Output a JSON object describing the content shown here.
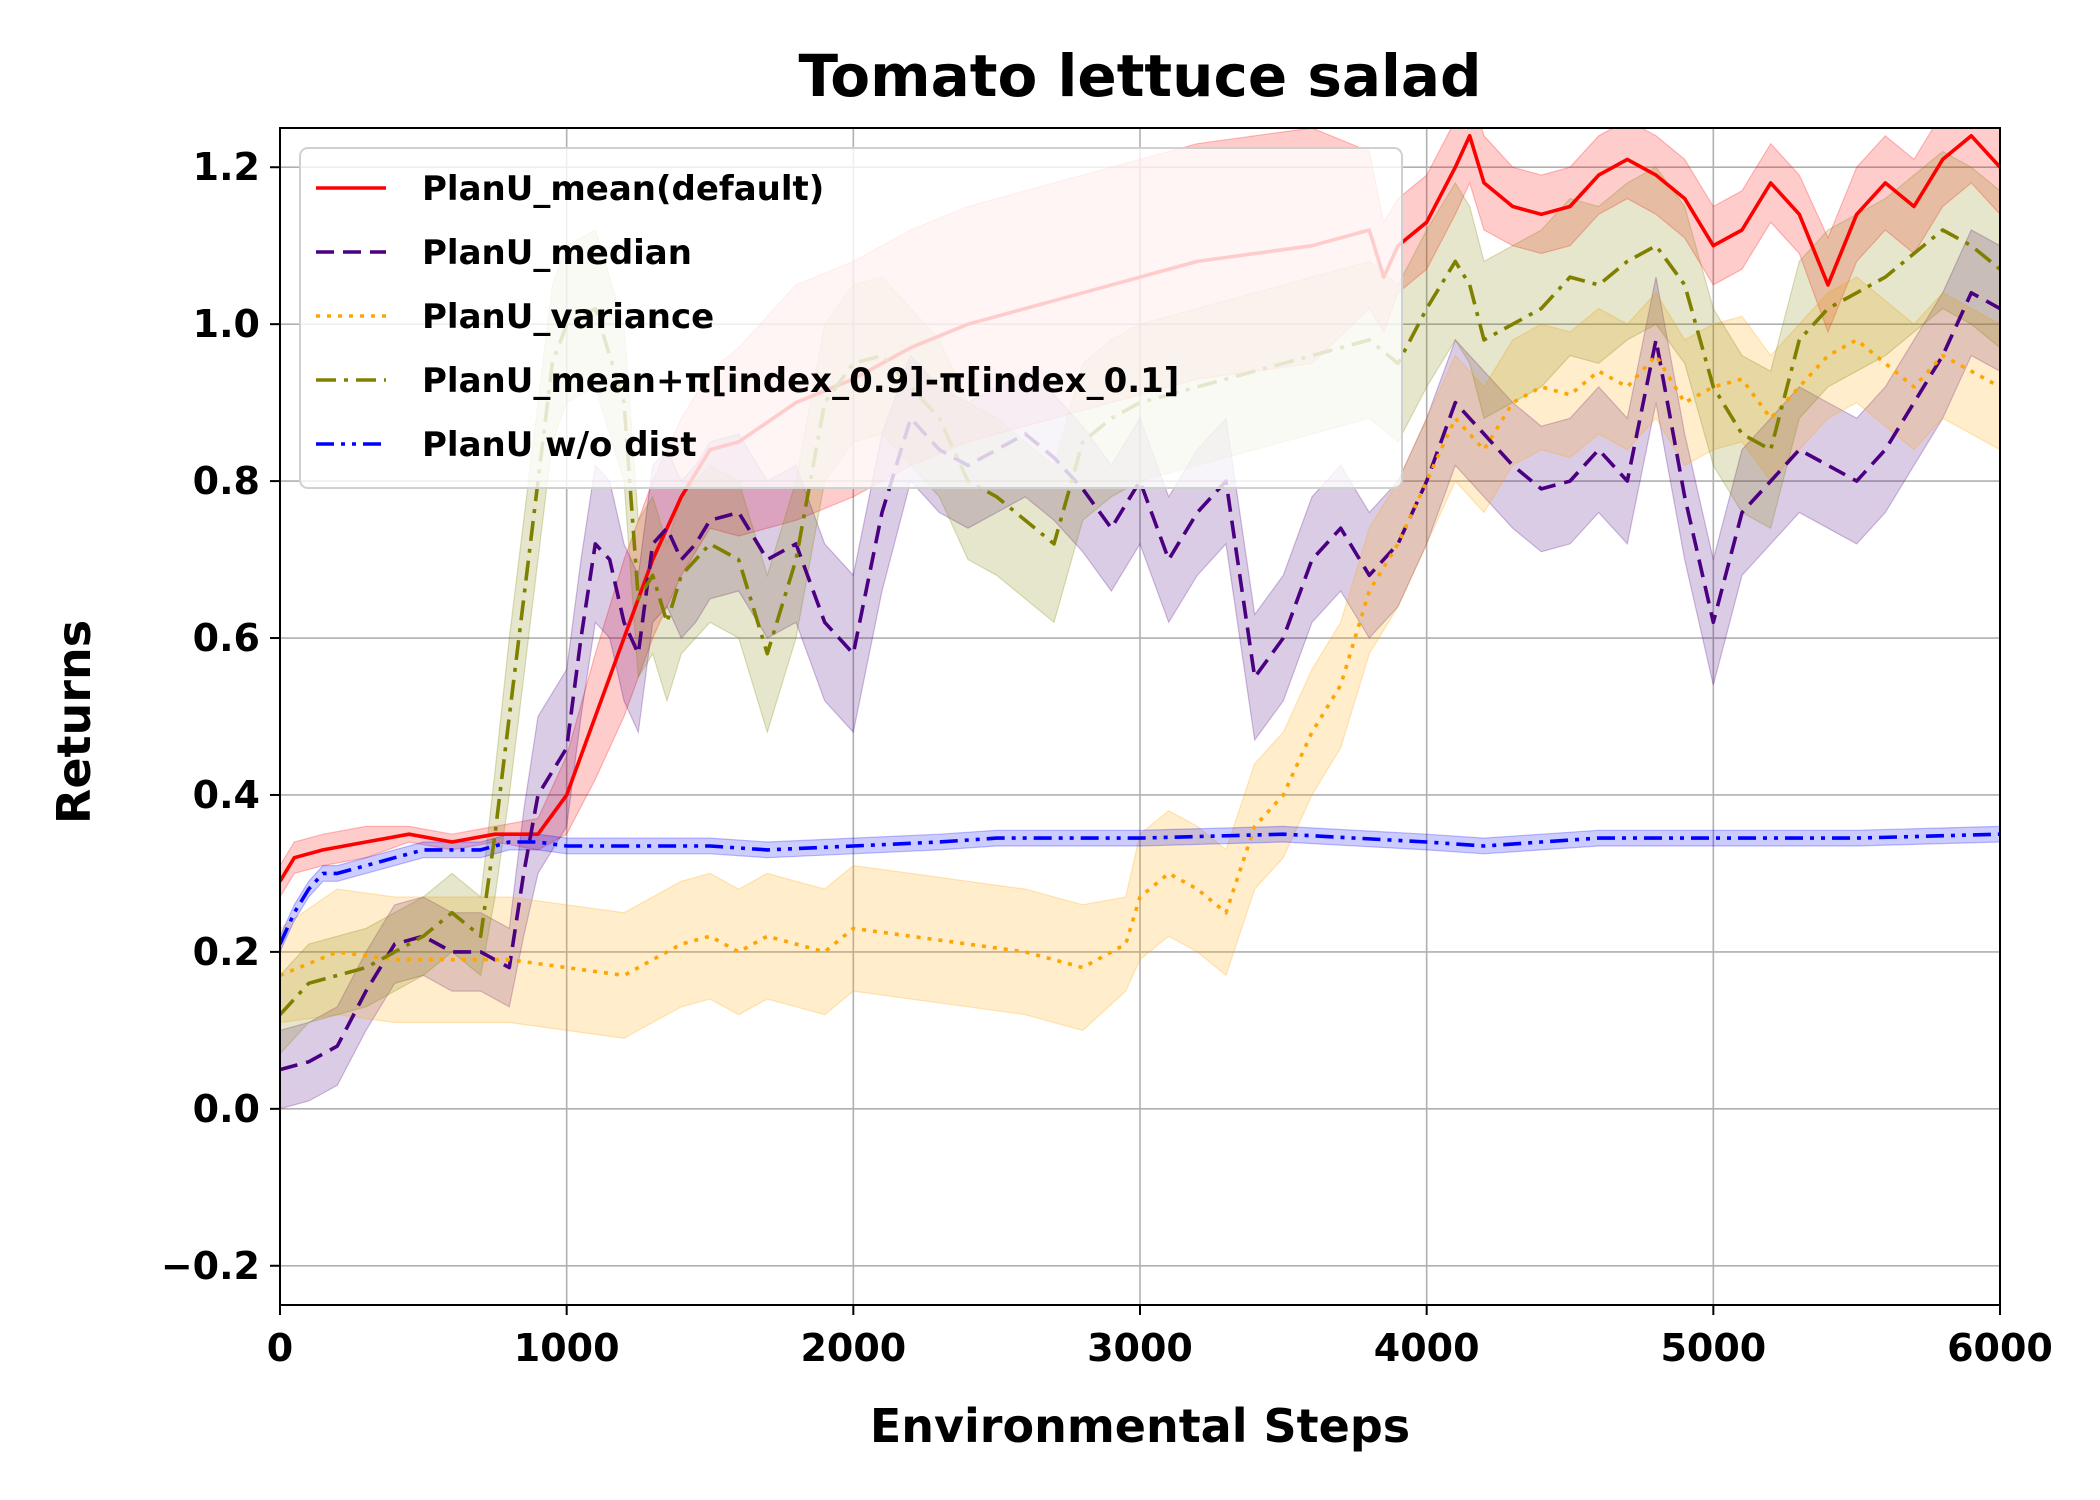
{
  "chart_data": {
    "type": "line",
    "title": "Tomato lettuce salad",
    "xlabel": "Environmental Steps",
    "ylabel": "Returns",
    "xlim": [
      0,
      6000
    ],
    "ylim": [
      -0.25,
      1.25
    ],
    "xticks": [
      0,
      1000,
      2000,
      3000,
      4000,
      5000,
      6000
    ],
    "xtick_labels": [
      "0",
      "1000",
      "2000",
      "3000",
      "4000",
      "5000",
      "6000"
    ],
    "yticks": [
      -0.2,
      0.0,
      0.2,
      0.4,
      0.6,
      0.8,
      1.0,
      1.2
    ],
    "ytick_labels": [
      "−0.2",
      "0.0",
      "0.2",
      "0.4",
      "0.6",
      "0.8",
      "1.0",
      "1.2"
    ],
    "grid": true,
    "legend_position": "top-left",
    "series": [
      {
        "name": "PlanU_mean(default)",
        "color": "#ff0000",
        "dash": "solid",
        "x": [
          0,
          50,
          150,
          300,
          450,
          600,
          750,
          900,
          1000,
          1100,
          1200,
          1300,
          1400,
          1500,
          1600,
          1800,
          2000,
          2200,
          2400,
          2600,
          2800,
          3000,
          3200,
          3400,
          3600,
          3800,
          3850,
          3900,
          4000,
          4100,
          4150,
          4200,
          4300,
          4400,
          4500,
          4600,
          4700,
          4800,
          4900,
          5000,
          5100,
          5200,
          5300,
          5400,
          5500,
          5600,
          5700,
          5800,
          5900,
          6000
        ],
        "y": [
          0.29,
          0.32,
          0.33,
          0.34,
          0.35,
          0.34,
          0.35,
          0.35,
          0.4,
          0.5,
          0.6,
          0.7,
          0.78,
          0.84,
          0.85,
          0.9,
          0.93,
          0.97,
          1.0,
          1.02,
          1.04,
          1.06,
          1.08,
          1.09,
          1.1,
          1.12,
          1.06,
          1.1,
          1.13,
          1.2,
          1.24,
          1.18,
          1.15,
          1.14,
          1.15,
          1.19,
          1.21,
          1.19,
          1.16,
          1.1,
          1.12,
          1.18,
          1.14,
          1.05,
          1.14,
          1.18,
          1.15,
          1.21,
          1.24,
          1.2
        ],
        "band": [
          0.02,
          0.02,
          0.02,
          0.02,
          0.01,
          0.01,
          0.01,
          0.02,
          0.05,
          0.08,
          0.1,
          0.1,
          0.1,
          0.1,
          0.12,
          0.15,
          0.15,
          0.15,
          0.15,
          0.15,
          0.15,
          0.15,
          0.15,
          0.15,
          0.15,
          0.1,
          0.07,
          0.06,
          0.06,
          0.06,
          0.06,
          0.06,
          0.05,
          0.05,
          0.05,
          0.05,
          0.05,
          0.05,
          0.05,
          0.05,
          0.05,
          0.05,
          0.05,
          0.06,
          0.06,
          0.06,
          0.06,
          0.06,
          0.06,
          0.06
        ]
      },
      {
        "name": "PlanU_median",
        "color": "#4b0082",
        "dash": "dashed",
        "x": [
          0,
          100,
          200,
          300,
          400,
          500,
          600,
          700,
          800,
          850,
          900,
          1000,
          1050,
          1100,
          1150,
          1200,
          1250,
          1300,
          1350,
          1400,
          1450,
          1500,
          1600,
          1700,
          1800,
          1900,
          2000,
          2100,
          2200,
          2300,
          2400,
          2500,
          2600,
          2700,
          2800,
          2900,
          3000,
          3100,
          3200,
          3300,
          3400,
          3500,
          3600,
          3700,
          3800,
          3900,
          4000,
          4100,
          4200,
          4300,
          4400,
          4500,
          4600,
          4700,
          4800,
          4900,
          5000,
          5100,
          5200,
          5300,
          5400,
          5500,
          5600,
          5700,
          5800,
          5900,
          6000
        ],
        "y": [
          0.05,
          0.06,
          0.08,
          0.15,
          0.21,
          0.22,
          0.2,
          0.2,
          0.18,
          0.3,
          0.4,
          0.46,
          0.6,
          0.72,
          0.7,
          0.62,
          0.58,
          0.72,
          0.74,
          0.7,
          0.72,
          0.75,
          0.76,
          0.7,
          0.72,
          0.62,
          0.58,
          0.76,
          0.88,
          0.84,
          0.82,
          0.84,
          0.86,
          0.83,
          0.79,
          0.74,
          0.8,
          0.7,
          0.76,
          0.8,
          0.55,
          0.6,
          0.7,
          0.74,
          0.68,
          0.72,
          0.8,
          0.9,
          0.86,
          0.82,
          0.79,
          0.8,
          0.84,
          0.8,
          0.98,
          0.78,
          0.62,
          0.76,
          0.8,
          0.84,
          0.82,
          0.8,
          0.84,
          0.9,
          0.96,
          1.04,
          1.02
        ],
        "band": [
          0.05,
          0.05,
          0.05,
          0.05,
          0.05,
          0.05,
          0.05,
          0.05,
          0.05,
          0.08,
          0.1,
          0.1,
          0.1,
          0.1,
          0.1,
          0.1,
          0.1,
          0.1,
          0.1,
          0.1,
          0.1,
          0.1,
          0.1,
          0.1,
          0.1,
          0.1,
          0.1,
          0.1,
          0.08,
          0.08,
          0.08,
          0.08,
          0.08,
          0.08,
          0.08,
          0.08,
          0.08,
          0.08,
          0.08,
          0.08,
          0.08,
          0.08,
          0.08,
          0.08,
          0.08,
          0.08,
          0.08,
          0.08,
          0.08,
          0.08,
          0.08,
          0.08,
          0.08,
          0.08,
          0.08,
          0.08,
          0.08,
          0.08,
          0.08,
          0.08,
          0.08,
          0.08,
          0.08,
          0.08,
          0.08,
          0.08,
          0.08
        ]
      },
      {
        "name": "PlanU_variance",
        "color": "#ffa500",
        "dash": "dotted",
        "x": [
          0,
          200,
          400,
          600,
          800,
          1000,
          1200,
          1400,
          1500,
          1600,
          1700,
          1800,
          1900,
          2000,
          2200,
          2400,
          2600,
          2800,
          2950,
          3000,
          3100,
          3200,
          3300,
          3400,
          3500,
          3600,
          3700,
          3800,
          3900,
          4000,
          4100,
          4200,
          4300,
          4400,
          4500,
          4600,
          4700,
          4800,
          4900,
          5000,
          5100,
          5200,
          5300,
          5400,
          5500,
          5600,
          5700,
          5800,
          5900,
          6000
        ],
        "y": [
          0.17,
          0.2,
          0.19,
          0.19,
          0.19,
          0.18,
          0.17,
          0.21,
          0.22,
          0.2,
          0.22,
          0.21,
          0.2,
          0.23,
          0.22,
          0.21,
          0.2,
          0.18,
          0.21,
          0.27,
          0.3,
          0.28,
          0.25,
          0.36,
          0.4,
          0.48,
          0.54,
          0.66,
          0.72,
          0.8,
          0.88,
          0.84,
          0.9,
          0.92,
          0.91,
          0.94,
          0.92,
          0.96,
          0.9,
          0.92,
          0.93,
          0.88,
          0.92,
          0.96,
          0.98,
          0.95,
          0.92,
          0.96,
          0.94,
          0.92
        ],
        "band": [
          0.06,
          0.08,
          0.08,
          0.08,
          0.08,
          0.08,
          0.08,
          0.08,
          0.08,
          0.08,
          0.08,
          0.08,
          0.08,
          0.08,
          0.08,
          0.08,
          0.08,
          0.08,
          0.06,
          0.08,
          0.08,
          0.08,
          0.08,
          0.08,
          0.08,
          0.08,
          0.08,
          0.08,
          0.08,
          0.08,
          0.08,
          0.08,
          0.08,
          0.08,
          0.08,
          0.08,
          0.08,
          0.08,
          0.08,
          0.08,
          0.08,
          0.08,
          0.08,
          0.08,
          0.08,
          0.08,
          0.08,
          0.08,
          0.08,
          0.08
        ]
      },
      {
        "name": "PlanU_mean+π[index_0.9]-π[index_0.1]",
        "color": "#808000",
        "dash": "dashdot",
        "x": [
          0,
          100,
          200,
          300,
          400,
          500,
          600,
          700,
          750,
          800,
          850,
          900,
          950,
          1000,
          1100,
          1200,
          1250,
          1300,
          1350,
          1400,
          1500,
          1600,
          1700,
          1800,
          1900,
          2000,
          2100,
          2200,
          2300,
          2400,
          2500,
          2600,
          2700,
          2800,
          2900,
          3000,
          3200,
          3400,
          3600,
          3800,
          3900,
          4000,
          4100,
          4150,
          4200,
          4300,
          4400,
          4500,
          4600,
          4700,
          4800,
          4900,
          5000,
          5100,
          5200,
          5300,
          5400,
          5500,
          5600,
          5700,
          5800,
          5900,
          6000
        ],
        "y": [
          0.12,
          0.16,
          0.17,
          0.18,
          0.2,
          0.22,
          0.25,
          0.22,
          0.35,
          0.5,
          0.65,
          0.8,
          0.95,
          1.0,
          1.02,
          0.9,
          0.65,
          0.68,
          0.62,
          0.68,
          0.72,
          0.7,
          0.58,
          0.7,
          0.9,
          0.95,
          0.96,
          0.92,
          0.88,
          0.8,
          0.78,
          0.75,
          0.72,
          0.85,
          0.88,
          0.9,
          0.92,
          0.94,
          0.96,
          0.98,
          0.95,
          1.02,
          1.08,
          1.05,
          0.98,
          1.0,
          1.02,
          1.06,
          1.05,
          1.08,
          1.1,
          1.05,
          0.92,
          0.86,
          0.84,
          0.98,
          1.02,
          1.04,
          1.06,
          1.09,
          1.12,
          1.1,
          1.07
        ],
        "band": [
          0.05,
          0.05,
          0.05,
          0.05,
          0.05,
          0.05,
          0.05,
          0.05,
          0.08,
          0.1,
          0.1,
          0.1,
          0.1,
          0.1,
          0.1,
          0.1,
          0.1,
          0.1,
          0.1,
          0.1,
          0.1,
          0.1,
          0.1,
          0.1,
          0.1,
          0.1,
          0.1,
          0.1,
          0.1,
          0.1,
          0.1,
          0.1,
          0.1,
          0.1,
          0.1,
          0.1,
          0.1,
          0.1,
          0.1,
          0.1,
          0.1,
          0.1,
          0.1,
          0.1,
          0.1,
          0.1,
          0.1,
          0.1,
          0.1,
          0.1,
          0.1,
          0.1,
          0.1,
          0.1,
          0.1,
          0.1,
          0.1,
          0.1,
          0.1,
          0.1,
          0.1,
          0.1,
          0.1
        ]
      },
      {
        "name": "PlanU w/o dist",
        "color": "#0000ff",
        "dash": "dashdotdot",
        "x": [
          0,
          50,
          100,
          150,
          200,
          300,
          400,
          500,
          600,
          700,
          800,
          900,
          1000,
          1200,
          1500,
          1700,
          2000,
          2300,
          2500,
          3000,
          3500,
          4000,
          4200,
          4400,
          4600,
          5000,
          5500,
          6000
        ],
        "y": [
          0.21,
          0.25,
          0.28,
          0.3,
          0.3,
          0.31,
          0.32,
          0.33,
          0.33,
          0.33,
          0.34,
          0.34,
          0.335,
          0.335,
          0.335,
          0.33,
          0.335,
          0.34,
          0.345,
          0.345,
          0.35,
          0.34,
          0.335,
          0.34,
          0.345,
          0.345,
          0.345,
          0.35
        ],
        "band": [
          0.01,
          0.01,
          0.01,
          0.01,
          0.01,
          0.01,
          0.01,
          0.01,
          0.01,
          0.01,
          0.01,
          0.01,
          0.01,
          0.01,
          0.01,
          0.01,
          0.01,
          0.01,
          0.01,
          0.01,
          0.01,
          0.01,
          0.01,
          0.01,
          0.01,
          0.01,
          0.01,
          0.01
        ]
      }
    ]
  }
}
